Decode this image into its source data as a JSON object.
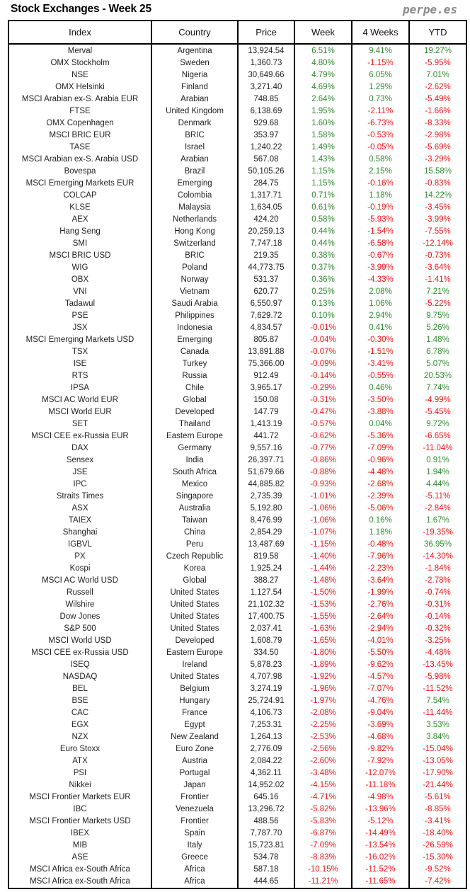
{
  "title": "Stock Exchanges - Week 25",
  "brand": "perpe.es",
  "colors": {
    "positive": "#2f8a2f",
    "negative": "#f01818"
  },
  "columns": [
    "Index",
    "Country",
    "Price",
    "Week",
    "4 Weeks",
    "YTD"
  ],
  "rows": [
    [
      "Merval",
      "Argentina",
      "13,924.54",
      "6.51%",
      "9.41%",
      "19.27%"
    ],
    [
      "OMX Stockholm",
      "Sweden",
      "1,360.73",
      "4.80%",
      "-1.15%",
      "-5.95%"
    ],
    [
      "NSE",
      "Nigeria",
      "30,649.66",
      "4.79%",
      "6.05%",
      "7.01%"
    ],
    [
      "OMX Helsinki",
      "Finland",
      "3,271.40",
      "4.69%",
      "1.29%",
      "-2.62%"
    ],
    [
      "MSCI Arabian ex-S. Arabia EUR",
      "Arabian",
      "748.85",
      "2.64%",
      "0.73%",
      "-5.49%"
    ],
    [
      "FTSE",
      "United Kingdom",
      "6,138.69",
      "1.95%",
      "-2.11%",
      "-1.66%"
    ],
    [
      "OMX Copenhagen",
      "Denmark",
      "929.68",
      "1.60%",
      "-6.73%",
      "-8.33%"
    ],
    [
      "MSCI BRIC EUR",
      "BRIC",
      "353.97",
      "1.58%",
      "-0.53%",
      "-2.98%"
    ],
    [
      "TASE",
      "Israel",
      "1,240.22",
      "1.49%",
      "-0.05%",
      "-5.69%"
    ],
    [
      "MSCI Arabian ex-S. Arabia USD",
      "Arabian",
      "567.08",
      "1.43%",
      "0.58%",
      "-3.29%"
    ],
    [
      "Bovespa",
      "Brazil",
      "50,105.26",
      "1.15%",
      "2.15%",
      "15.58%"
    ],
    [
      "MSCI Emerging Markets EUR",
      "Emerging",
      "284.75",
      "1.15%",
      "-0.16%",
      "-0.83%"
    ],
    [
      "COLCAP",
      "Colombia",
      "1,317.71",
      "0.71%",
      "1.18%",
      "14.22%"
    ],
    [
      "KLSE",
      "Malaysia",
      "1,634.05",
      "0.61%",
      "-0.19%",
      "-3.45%"
    ],
    [
      "AEX",
      "Netherlands",
      "424.20",
      "0.58%",
      "-5.93%",
      "-3.99%"
    ],
    [
      "Hang Seng",
      "Hong Kong",
      "20,259.13",
      "0.44%",
      "-1.54%",
      "-7.55%"
    ],
    [
      "SMI",
      "Switzerland",
      "7,747.18",
      "0.44%",
      "-6.58%",
      "-12.14%"
    ],
    [
      "MSCI BRIC USD",
      "BRIC",
      "219.35",
      "0.38%",
      "-0.67%",
      "-0.73%"
    ],
    [
      "WIG",
      "Poland",
      "44,773.75",
      "0.37%",
      "-3.99%",
      "-3.64%"
    ],
    [
      "OBX",
      "Norway",
      "531.37",
      "0.36%",
      "-4.33%",
      "-1.41%"
    ],
    [
      "VNI",
      "Vietnam",
      "620.77",
      "0.25%",
      "2.08%",
      "7.21%"
    ],
    [
      "Tadawul",
      "Saudi Arabia",
      "6,550.97",
      "0.13%",
      "1.06%",
      "-5.22%"
    ],
    [
      "PSE",
      "Philippines",
      "7,629.72",
      "0.10%",
      "2.94%",
      "9.75%"
    ],
    [
      "JSX",
      "Indonesia",
      "4,834.57",
      "-0.01%",
      "0.41%",
      "5.26%"
    ],
    [
      "MSCI Emerging Markets USD",
      "Emerging",
      "805.87",
      "-0.04%",
      "-0.30%",
      "1.48%"
    ],
    [
      "TSX",
      "Canada",
      "13,891.88",
      "-0.07%",
      "-1.51%",
      "6.78%"
    ],
    [
      "ISE",
      "Turkey",
      "75,366.00",
      "-0.09%",
      "-3.41%",
      "5.07%"
    ],
    [
      "RTS",
      "Russia",
      "912.49",
      "-0.14%",
      "-0.55%",
      "20.53%"
    ],
    [
      "IPSA",
      "Chile",
      "3,965.17",
      "-0.29%",
      "0.46%",
      "7.74%"
    ],
    [
      "MSCI AC World EUR",
      "Global",
      "150.08",
      "-0.31%",
      "-3.50%",
      "-4.99%"
    ],
    [
      "MSCI World EUR",
      "Developed",
      "147.79",
      "-0.47%",
      "-3.88%",
      "-5.45%"
    ],
    [
      "SET",
      "Thailand",
      "1,413.19",
      "-0.57%",
      "0.04%",
      "9.72%"
    ],
    [
      "MSCI CEE ex-Russia EUR",
      "Eastern Europe",
      "441.72",
      "-0.62%",
      "-5.36%",
      "-6.65%"
    ],
    [
      "DAX",
      "Germany",
      "9,557.16",
      "-0.77%",
      "-7.09%",
      "-11.04%"
    ],
    [
      "Sensex",
      "India",
      "26,397.71",
      "-0.86%",
      "-0.96%",
      "0.91%"
    ],
    [
      "JSE",
      "South Africa",
      "51,679.66",
      "-0.88%",
      "-4.48%",
      "1.94%"
    ],
    [
      "IPC",
      "Mexico",
      "44,885.82",
      "-0.93%",
      "-2.68%",
      "4.44%"
    ],
    [
      "Straits Times",
      "Singapore",
      "2,735.39",
      "-1.01%",
      "-2.39%",
      "-5.11%"
    ],
    [
      "ASX",
      "Australia",
      "5,192.80",
      "-1.06%",
      "-5.06%",
      "-2.84%"
    ],
    [
      "TAIEX",
      "Taiwan",
      "8,476.99",
      "-1.06%",
      "0.16%",
      "1.67%"
    ],
    [
      "Shanghai",
      "China",
      "2,854.29",
      "-1.07%",
      "1.18%",
      "-19.35%"
    ],
    [
      "IGBVL",
      "Peru",
      "13,487.69",
      "-1.15%",
      "-0.48%",
      "36.95%"
    ],
    [
      "PX",
      "Czech Republic",
      "819.58",
      "-1.40%",
      "-7.96%",
      "-14.30%"
    ],
    [
      "Kospi",
      "Korea",
      "1,925.24",
      "-1.44%",
      "-2.23%",
      "-1.84%"
    ],
    [
      "MSCI AC World USD",
      "Global",
      "388.27",
      "-1.48%",
      "-3.64%",
      "-2.78%"
    ],
    [
      "Russell",
      "United States",
      "1,127.54",
      "-1.50%",
      "-1.99%",
      "-0.74%"
    ],
    [
      "Wilshire",
      "United States",
      "21,102.32",
      "-1.53%",
      "-2.76%",
      "-0.31%"
    ],
    [
      "Dow Jones",
      "United States",
      "17,400.75",
      "-1.55%",
      "-2.64%",
      "-0.14%"
    ],
    [
      "S&P 500",
      "United States",
      "2,037.41",
      "-1.63%",
      "-2.94%",
      "-0.32%"
    ],
    [
      "MSCI World USD",
      "Developed",
      "1,608.79",
      "-1.65%",
      "-4.01%",
      "-3.25%"
    ],
    [
      "MSCI CEE ex-Russia USD",
      "Eastern Europe",
      "334.50",
      "-1.80%",
      "-5.50%",
      "-4.48%"
    ],
    [
      "ISEQ",
      "Ireland",
      "5,878.23",
      "-1.89%",
      "-9.62%",
      "-13.45%"
    ],
    [
      "NASDAQ",
      "United States",
      "4,707.98",
      "-1.92%",
      "-4.57%",
      "-5.98%"
    ],
    [
      "BEL",
      "Belgium",
      "3,274.19",
      "-1.96%",
      "-7.07%",
      "-11.52%"
    ],
    [
      "BSE",
      "Hungary",
      "25,724.91",
      "-1.97%",
      "-4.76%",
      "7.54%"
    ],
    [
      "CAC",
      "France",
      "4,106.73",
      "-2.08%",
      "-9.04%",
      "-11.44%"
    ],
    [
      "EGX",
      "Egypt",
      "7,253.31",
      "-2.25%",
      "-3.69%",
      "3.53%"
    ],
    [
      "NZX",
      "New Zealand",
      "1,264.13",
      "-2.53%",
      "-4.68%",
      "3.84%"
    ],
    [
      "Euro Stoxx",
      "Euro Zone",
      "2,776.09",
      "-2.56%",
      "-9.82%",
      "-15.04%"
    ],
    [
      "ATX",
      "Austria",
      "2,084.22",
      "-2.60%",
      "-7.92%",
      "-13.05%"
    ],
    [
      "PSI",
      "Portugal",
      "4,362.11",
      "-3.48%",
      "-12.07%",
      "-17.90%"
    ],
    [
      "Nikkei",
      "Japan",
      "14,952.02",
      "-4.15%",
      "-11.18%",
      "-21.44%"
    ],
    [
      "MSCI Frontier Markets EUR",
      "Frontier",
      "645.16",
      "-4.71%",
      "-4.98%",
      "-5.61%"
    ],
    [
      "IBC",
      "Venezuela",
      "13,296.72",
      "-5.82%",
      "-13.96%",
      "-8.85%"
    ],
    [
      "MSCI Frontier Markets USD",
      "Frontier",
      "488.56",
      "-5.83%",
      "-5.12%",
      "-3.41%"
    ],
    [
      "IBEX",
      "Spain",
      "7,787.70",
      "-6.87%",
      "-14.49%",
      "-18.40%"
    ],
    [
      "MIB",
      "Italy",
      "15,723.81",
      "-7.09%",
      "-13.54%",
      "-26.59%"
    ],
    [
      "ASE",
      "Greece",
      "534.78",
      "-8.83%",
      "-16.02%",
      "-15.30%"
    ],
    [
      "MSCI Africa ex-South Africa",
      "Africa",
      "587.18",
      "-10.15%",
      "-11.52%",
      "-9.52%"
    ],
    [
      "MSCI Africa ex-South Africa",
      "Africa",
      "444.65",
      "-11.21%",
      "-11.65%",
      "-7.42%"
    ]
  ]
}
